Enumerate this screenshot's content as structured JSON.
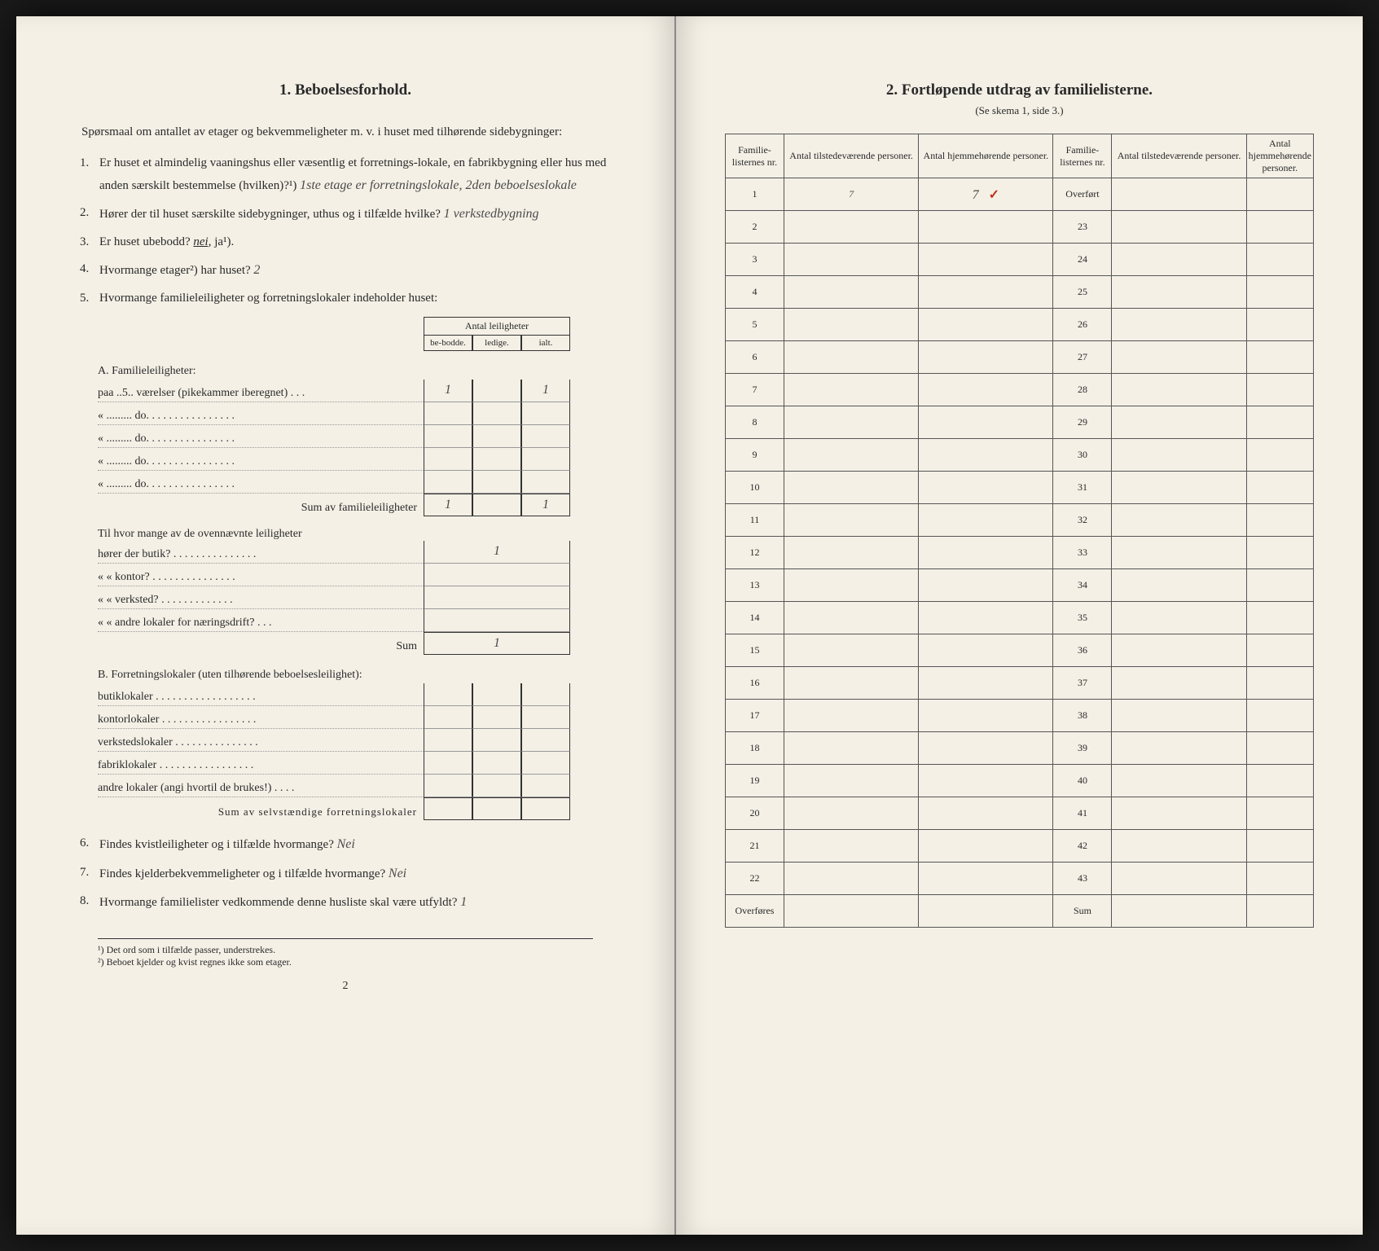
{
  "left": {
    "title": "1.   Beboelsesforhold.",
    "intro": "Spørsmaal om antallet av etager og bekvemmeligheter m. v. i huset med tilhørende sidebygninger:",
    "q1_text": "Er huset et almindelig vaaningshus eller væsentlig et forretnings-lokale, en fabrikbygning eller hus med anden særskilt bestemmelse (hvilken)?¹)",
    "q1_hand": "1ste etage er forretningslokale, 2den beboelseslokale",
    "q2_text": "Hører der til huset særskilte sidebygninger, uthus og i tilfælde hvilke?",
    "q2_hand": "1 verkstedbygning",
    "q3_text": "Er huset ubebodd?",
    "q3_nei": "nei,",
    "q3_ja": "ja¹).",
    "q4_text": "Hvormange etager²) har huset?",
    "q4_hand": "2",
    "q5_text": "Hvormange familieleiligheter og forretningslokaler indeholder huset:",
    "table_header": "Antal leiligheter",
    "col_bebodde": "be-bodde.",
    "col_ledige": "ledige.",
    "col_ialt": "ialt.",
    "sectA": "A. Familieleiligheter:",
    "rowA1_label": "paa ..5.. værelser (pikekammer iberegnet) . . .",
    "rowA1_bebodde": "1",
    "rowA1_ialt": "1",
    "rowA_do": "«  .........   do.   . . . . . . . . . . . . . . .",
    "sumA_label": "Sum av familieleiligheter",
    "sumA_bebodde": "1",
    "sumA_ialt": "1",
    "midQ": "Til hvor mange av de ovennævnte leiligheter",
    "mid_butik": "hører der butik? . . . . . . . . . . . . . . .",
    "mid_butik_val": "1",
    "mid_kontor": "«     «  kontor? . . . . . . . . . . . . . . .",
    "mid_verksted": "«     «  verksted? . . . . . . . . . . . . .",
    "mid_andre": "«     «  andre lokaler for næringsdrift? . . .",
    "mid_sum": "Sum",
    "mid_sum_val": "1",
    "sectB": "B. Forretningslokaler (uten tilhørende beboelsesleilighet):",
    "b_butik": "butiklokaler . . . . . . . . . . . . . . . . . .",
    "b_kontor": "kontorlokaler . . . . . . . . . . . . . . . . .",
    "b_verksted": "verkstedslokaler . . . . . . . . . . . . . . .",
    "b_fabrik": "fabriklokaler . . . . . . . . . . . . . . . . .",
    "b_andre": "andre lokaler (angi hvortil de brukes!) . . . .",
    "sumB_label": "Sum av selvstændige forretningslokaler",
    "q6_text": "Findes kvistleiligheter og i tilfælde hvormange?",
    "q6_hand": "Nei",
    "q7_text": "Findes kjelderbekvemmeligheter og i tilfælde hvormange?",
    "q7_hand": "Nei",
    "q8_text": "Hvormange familielister vedkommende denne husliste skal være utfyldt?",
    "q8_hand": "1",
    "fn1": "¹) Det ord som i tilfælde passer, understrekes.",
    "fn2": "²) Beboet kjelder og kvist regnes ikke som etager.",
    "pagenum": "2"
  },
  "right": {
    "title": "2.   Fortløpende utdrag av familielisterne.",
    "subtitle": "(Se skema 1, side 3.)",
    "h_nr": "Familie-listernes nr.",
    "h_tilstede": "Antal tilstedeværende personer.",
    "h_hjemme": "Antal hjemmehørende personer.",
    "r1_nr": "1",
    "r1_til": "7",
    "r1_hj": "7",
    "check": "✓",
    "overfort": "Overført",
    "rows_left": [
      "2",
      "3",
      "4",
      "5",
      "6",
      "7",
      "8",
      "9",
      "10",
      "11",
      "12",
      "13",
      "14",
      "15",
      "16",
      "17",
      "18",
      "19",
      "20",
      "21",
      "22"
    ],
    "rows_right": [
      "23",
      "24",
      "25",
      "26",
      "27",
      "28",
      "29",
      "30",
      "31",
      "32",
      "33",
      "34",
      "35",
      "36",
      "37",
      "38",
      "39",
      "40",
      "41",
      "42",
      "43"
    ],
    "overfores": "Overføres",
    "sum": "Sum"
  }
}
